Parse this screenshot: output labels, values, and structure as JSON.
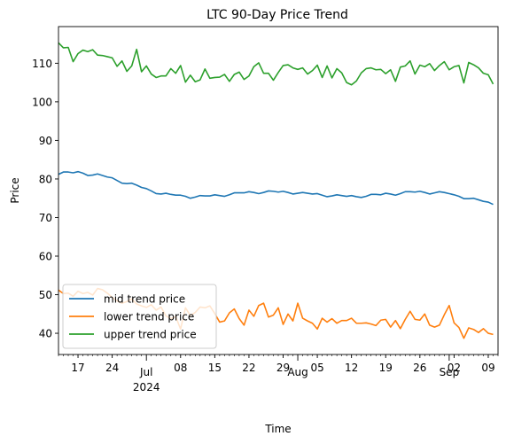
{
  "chart_data": {
    "type": "line",
    "title": "LTC 90-Day Price Trend",
    "xlabel": "Time",
    "ylabel": "Price",
    "ylim": [
      34.5,
      119.5
    ],
    "yticks": [
      40,
      50,
      60,
      70,
      80,
      90,
      100,
      110
    ],
    "x_start": "2024-06-13",
    "x_end": "2024-09-11",
    "xticks_minor": [
      {
        "date": "2024-06-17",
        "label": "17"
      },
      {
        "date": "2024-06-24",
        "label": "24"
      },
      {
        "date": "2024-07-08",
        "label": "08"
      },
      {
        "date": "2024-07-15",
        "label": "15"
      },
      {
        "date": "2024-07-22",
        "label": "22"
      },
      {
        "date": "2024-07-29",
        "label": "29"
      },
      {
        "date": "2024-08-05",
        "label": "05"
      },
      {
        "date": "2024-08-12",
        "label": "12"
      },
      {
        "date": "2024-08-19",
        "label": "19"
      },
      {
        "date": "2024-08-26",
        "label": "26"
      },
      {
        "date": "2024-09-02",
        "label": "02"
      },
      {
        "date": "2024-09-09",
        "label": "09"
      }
    ],
    "xticks_major": [
      {
        "date": "2024-07-01",
        "label": "Jul",
        "sublabel": "2024"
      },
      {
        "date": "2024-08-01",
        "label": "Aug",
        "sublabel": ""
      },
      {
        "date": "2024-09-01",
        "label": "Sep",
        "sublabel": ""
      }
    ],
    "legend_position": "lower-left",
    "series": [
      {
        "name": "mid trend price",
        "color": "#1f77b4",
        "values": [
          81.2,
          81.8,
          81.8,
          81.6,
          81.9,
          81.5,
          80.9,
          81.0,
          81.3,
          80.9,
          80.5,
          80.3,
          79.6,
          78.9,
          78.8,
          78.9,
          78.4,
          77.8,
          77.5,
          76.9,
          76.2,
          76.1,
          76.3,
          76.0,
          75.8,
          75.8,
          75.5,
          75.0,
          75.3,
          75.7,
          75.6,
          75.6,
          75.9,
          75.7,
          75.5,
          75.9,
          76.4,
          76.4,
          76.4,
          76.7,
          76.5,
          76.2,
          76.5,
          76.9,
          76.8,
          76.6,
          76.8,
          76.5,
          76.1,
          76.3,
          76.5,
          76.3,
          76.1,
          76.2,
          75.8,
          75.4,
          75.6,
          75.9,
          75.7,
          75.5,
          75.7,
          75.4,
          75.2,
          75.5,
          76.0,
          76.0,
          75.9,
          76.3,
          76.1,
          75.8,
          76.2,
          76.7,
          76.7,
          76.6,
          76.8,
          76.5,
          76.1,
          76.4,
          76.7,
          76.5,
          76.2,
          75.9,
          75.5,
          74.9,
          74.9,
          75.0,
          74.6,
          74.2,
          74.0,
          73.4
        ]
      },
      {
        "name": "lower trend price",
        "color": "#ff7f0e",
        "values": [
          51.2,
          50.3,
          50.4,
          49.6,
          50.9,
          50.3,
          50.6,
          49.9,
          51.6,
          51.3,
          50.4,
          49.3,
          48.4,
          47.8,
          48.2,
          48.9,
          47.6,
          47.1,
          46.7,
          47.4,
          46.0,
          46.8,
          44.5,
          43.8,
          44.3,
          41.1,
          46.6,
          44.6,
          45.4,
          46.8,
          46.6,
          47.1,
          45.1,
          42.9,
          43.2,
          45.3,
          46.3,
          43.8,
          42.1,
          46.0,
          44.4,
          47.2,
          47.8,
          44.2,
          44.7,
          46.6,
          42.3,
          45.0,
          43.2,
          47.8,
          43.9,
          43.2,
          42.6,
          41.1,
          43.9,
          42.9,
          43.8,
          42.6,
          43.3,
          43.3,
          43.9,
          42.6,
          42.6,
          42.7,
          42.4,
          42.0,
          43.4,
          43.6,
          41.6,
          43.3,
          41.2,
          43.6,
          45.7,
          43.6,
          43.4,
          45.0,
          42.1,
          41.6,
          42.1,
          44.8,
          47.2,
          42.7,
          41.5,
          38.7,
          41.4,
          41.0,
          40.2,
          41.2,
          40.0,
          39.7
        ]
      },
      {
        "name": "upper trend price",
        "color": "#2ca02c",
        "values": [
          115.3,
          114.0,
          114.1,
          110.4,
          112.5,
          113.4,
          113.0,
          113.5,
          112.1,
          112.0,
          111.7,
          111.4,
          109.2,
          110.6,
          107.9,
          109.3,
          113.6,
          107.8,
          109.3,
          107.2,
          106.3,
          106.7,
          106.7,
          108.6,
          107.4,
          109.4,
          105.1,
          106.9,
          105.2,
          105.7,
          108.5,
          106.1,
          106.3,
          106.4,
          107.1,
          105.3,
          107.1,
          107.7,
          105.8,
          106.7,
          109.1,
          110.1,
          107.4,
          107.4,
          105.6,
          107.6,
          109.4,
          109.6,
          108.8,
          108.4,
          108.8,
          107.2,
          108.1,
          109.5,
          106.3,
          109.3,
          106.2,
          108.6,
          107.5,
          105.0,
          104.4,
          105.4,
          107.5,
          108.6,
          108.8,
          108.3,
          108.4,
          107.3,
          108.3,
          105.3,
          109.0,
          109.3,
          110.6,
          107.2,
          109.5,
          109.1,
          109.9,
          108.1,
          109.4,
          110.4,
          108.3,
          109.1,
          109.4,
          104.9,
          110.2,
          109.6,
          108.8,
          107.4,
          107.0,
          104.6
        ]
      }
    ]
  }
}
